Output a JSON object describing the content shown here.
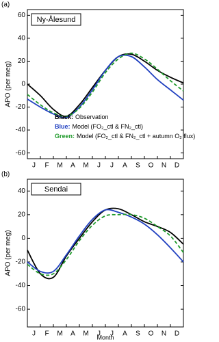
{
  "chart_data": [
    {
      "type": "line",
      "panel_label": "(a)",
      "site": "Ny-Ålesund",
      "ylabel": "APO (per meg)",
      "categories": [
        "J",
        "F",
        "M",
        "A",
        "M",
        "J",
        "J",
        "A",
        "S",
        "O",
        "N",
        "D"
      ],
      "x": [
        0,
        1,
        2,
        3,
        4,
        5,
        6,
        7,
        8,
        9,
        10,
        11,
        12
      ],
      "xlim": [
        0,
        12
      ],
      "xticks": [
        0,
        1,
        2,
        3,
        4,
        5,
        6,
        7,
        8,
        9,
        10,
        11,
        12
      ],
      "ylim": [
        -65,
        65
      ],
      "yticks": [
        -60,
        -40,
        -20,
        0,
        20,
        40,
        60
      ],
      "legend": true,
      "series": [
        {
          "legend_prefix": "Black:",
          "name": "Observation",
          "color": "#000000",
          "dash": false,
          "values": [
            0,
            -10,
            -22,
            -28,
            -18,
            -3,
            12,
            24,
            26,
            20,
            12,
            6,
            1
          ]
        },
        {
          "legend_prefix": "Blue:",
          "name": "Model (FO₂_ctl & FN₂_ctl)",
          "color": "#2040c0",
          "dash": false,
          "values": [
            -13,
            -20,
            -26,
            -29,
            -20,
            -5,
            12,
            24,
            24,
            15,
            4,
            -5,
            -14
          ]
        },
        {
          "legend_prefix": "Green:",
          "name": "Model (FO₂_ctl & FN₂_ctl + autumn O₂ flux)",
          "color": "#1e9a2a",
          "dash": true,
          "values": [
            -9,
            -18,
            -25,
            -28,
            -21,
            -7,
            10,
            22,
            27,
            22,
            13,
            3,
            -6
          ]
        }
      ]
    },
    {
      "type": "line",
      "panel_label": "(b)",
      "site": "Sendai",
      "ylabel": "APO (per meg)",
      "xlabel": "Month",
      "categories": [
        "J",
        "F",
        "M",
        "A",
        "M",
        "J",
        "J",
        "A",
        "S",
        "O",
        "N",
        "D"
      ],
      "x": [
        0,
        1,
        2,
        3,
        4,
        5,
        6,
        7,
        8,
        9,
        10,
        11,
        12
      ],
      "xlim": [
        0,
        12
      ],
      "xticks": [
        0,
        1,
        2,
        3,
        4,
        5,
        6,
        7,
        8,
        9,
        10,
        11,
        12
      ],
      "ylim": [
        -75,
        50
      ],
      "yticks": [
        -60,
        -40,
        -20,
        0,
        20,
        40
      ],
      "legend": false,
      "series": [
        {
          "color": "#000000",
          "dash": false,
          "values": [
            -10,
            -30,
            -33,
            -15,
            0,
            14,
            24,
            25,
            20,
            14,
            10,
            5,
            -5
          ]
        },
        {
          "color": "#2040c0",
          "dash": false,
          "values": [
            -20,
            -28,
            -28,
            -14,
            2,
            16,
            24,
            22,
            18,
            12,
            3,
            -8,
            -20
          ]
        },
        {
          "color": "#1e9a2a",
          "dash": true,
          "values": [
            -22,
            -30,
            -30,
            -18,
            -2,
            11,
            19,
            20,
            20,
            17,
            10,
            2,
            -12
          ]
        }
      ]
    }
  ]
}
